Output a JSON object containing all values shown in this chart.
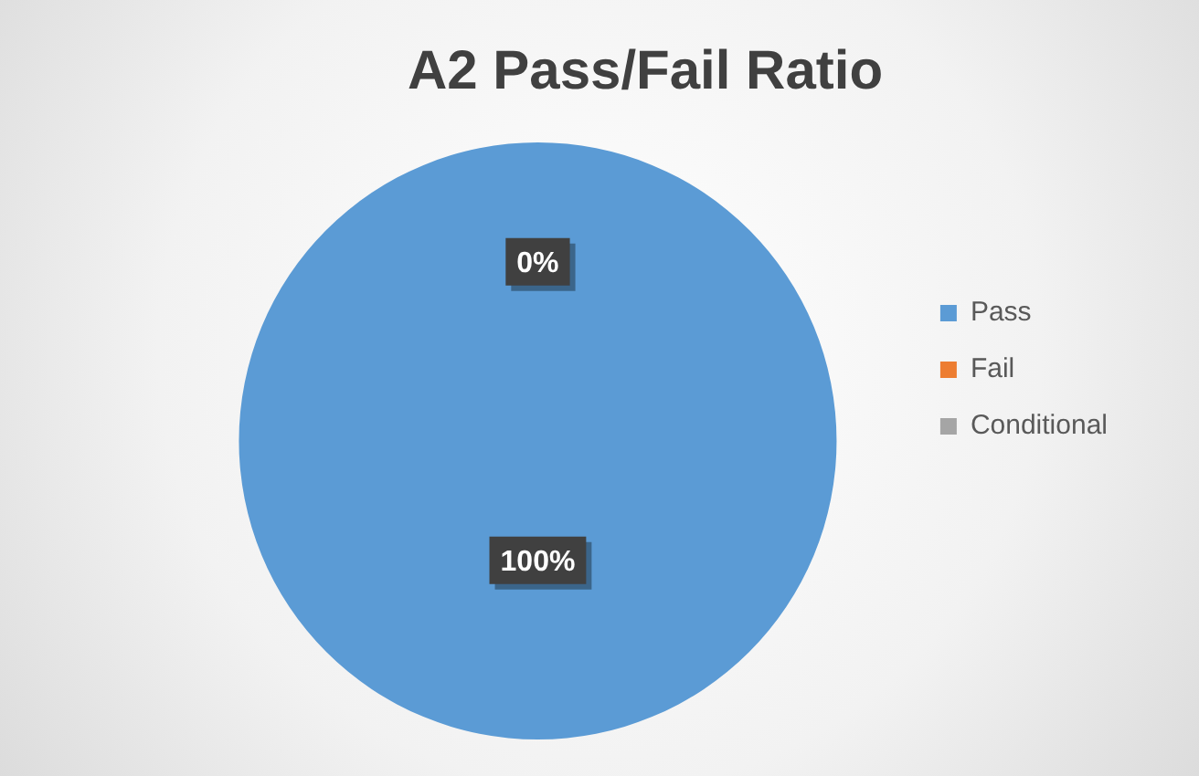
{
  "chart_data": {
    "type": "pie",
    "title": "A2 Pass/Fail Ratio",
    "categories": [
      "Pass",
      "Fail",
      "Conditional"
    ],
    "values": [
      100,
      0,
      0
    ],
    "colors": [
      "#5b9bd5",
      "#ed7d31",
      "#a5a5a5"
    ],
    "value_labels": [
      "100%",
      "0%",
      null
    ],
    "legend": "right"
  }
}
